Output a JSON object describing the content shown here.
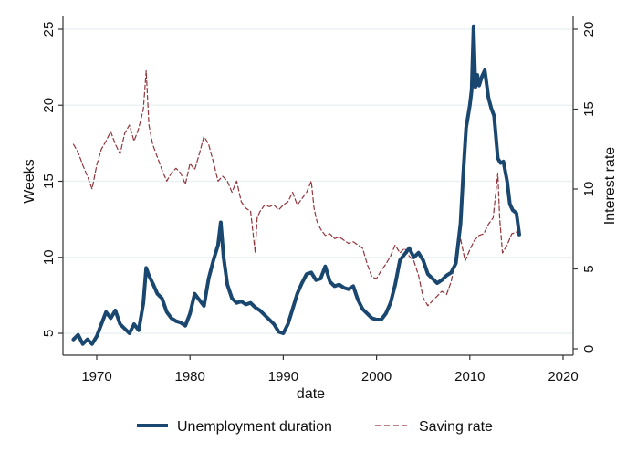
{
  "chart_data": {
    "type": "line",
    "title": "",
    "xlabel": "date",
    "ylabel": "Weeks",
    "y2label": "Interest rate",
    "xlim": [
      1967,
      2021
    ],
    "ylim": [
      3.5,
      26
    ],
    "y2lim": [
      -0.4,
      20.6
    ],
    "x_ticks": [
      1970,
      1980,
      1990,
      2000,
      2010,
      2020
    ],
    "y_ticks": [
      5,
      10,
      15,
      20,
      25
    ],
    "y2_ticks": [
      0,
      5,
      10,
      15,
      20
    ],
    "grid": true,
    "legend_position": "bottom",
    "colors": {
      "unemployment": "#1a476f",
      "saving": "#90353b",
      "grid": "#eaf2f3",
      "axis": "#333333"
    },
    "series": [
      {
        "name": "Unemployment duration",
        "axis": "left",
        "style": "solid",
        "x": [
          1967.5,
          1968.0,
          1968.5,
          1969.0,
          1969.5,
          1970.0,
          1970.5,
          1971.0,
          1971.5,
          1972.0,
          1972.5,
          1973.0,
          1973.5,
          1974.0,
          1974.5,
          1975.0,
          1975.3,
          1975.6,
          1976.0,
          1976.5,
          1977.0,
          1977.5,
          1978.0,
          1978.5,
          1979.0,
          1979.5,
          1980.0,
          1980.5,
          1981.0,
          1981.5,
          1982.0,
          1982.5,
          1983.0,
          1983.3,
          1983.6,
          1984.0,
          1984.5,
          1985.0,
          1985.5,
          1986.0,
          1986.5,
          1987.0,
          1987.5,
          1988.0,
          1988.5,
          1989.0,
          1989.5,
          1990.0,
          1990.5,
          1991.0,
          1991.5,
          1992.0,
          1992.5,
          1993.0,
          1993.5,
          1994.0,
          1994.5,
          1995.0,
          1995.5,
          1996.0,
          1996.5,
          1997.0,
          1997.5,
          1998.0,
          1998.5,
          1999.0,
          1999.5,
          2000.0,
          2000.5,
          2001.0,
          2001.5,
          2002.0,
          2002.5,
          2003.0,
          2003.5,
          2004.0,
          2004.5,
          2005.0,
          2005.5,
          2006.0,
          2006.5,
          2007.0,
          2007.5,
          2008.0,
          2008.5,
          2009.0,
          2009.3,
          2009.6,
          2010.0,
          2010.2,
          2010.4,
          2010.6,
          2010.8,
          2011.0,
          2011.3,
          2011.6,
          2012.0,
          2012.3,
          2012.6,
          2013.0,
          2013.3,
          2013.6,
          2014.0,
          2014.3,
          2014.6,
          2015.0,
          2015.3
        ],
        "values": [
          4.6,
          4.9,
          4.3,
          4.6,
          4.3,
          4.8,
          5.6,
          6.4,
          6.0,
          6.5,
          5.6,
          5.3,
          5.0,
          5.6,
          5.2,
          7.0,
          9.3,
          8.8,
          8.3,
          7.6,
          7.3,
          6.4,
          6.0,
          5.8,
          5.7,
          5.5,
          6.3,
          7.6,
          7.2,
          6.8,
          8.6,
          9.8,
          10.8,
          12.3,
          10.0,
          8.2,
          7.3,
          7.0,
          7.1,
          6.9,
          7.0,
          6.7,
          6.5,
          6.2,
          5.9,
          5.6,
          5.1,
          5.0,
          5.6,
          6.6,
          7.6,
          8.3,
          8.9,
          9.0,
          8.5,
          8.6,
          9.4,
          8.4,
          8.1,
          8.2,
          8.0,
          7.9,
          8.1,
          7.2,
          6.6,
          6.3,
          6.0,
          5.9,
          5.9,
          6.3,
          7.0,
          8.2,
          9.8,
          10.2,
          10.6,
          10.0,
          10.3,
          9.8,
          8.9,
          8.6,
          8.3,
          8.5,
          8.8,
          9.0,
          9.6,
          12.2,
          15.5,
          18.5,
          20.0,
          21.0,
          25.2,
          21.2,
          22.0,
          21.3,
          21.9,
          22.3,
          20.5,
          19.8,
          19.3,
          16.5,
          16.2,
          16.3,
          15.0,
          13.5,
          13.1,
          12.9,
          11.5
        ]
      },
      {
        "name": "Saving rate",
        "axis": "right",
        "style": "dashed",
        "x": [
          1967.5,
          1968.0,
          1968.5,
          1969.0,
          1969.5,
          1970.0,
          1970.5,
          1971.0,
          1971.5,
          1972.0,
          1972.5,
          1973.0,
          1973.5,
          1974.0,
          1974.5,
          1975.0,
          1975.3,
          1975.6,
          1976.0,
          1976.5,
          1977.0,
          1977.5,
          1978.0,
          1978.5,
          1979.0,
          1979.5,
          1980.0,
          1980.5,
          1981.0,
          1981.5,
          1982.0,
          1982.5,
          1983.0,
          1983.5,
          1984.0,
          1984.5,
          1985.0,
          1985.5,
          1986.0,
          1986.5,
          1987.0,
          1987.2,
          1987.5,
          1988.0,
          1988.5,
          1989.0,
          1989.5,
          1990.0,
          1990.5,
          1991.0,
          1991.5,
          1992.0,
          1992.5,
          1993.0,
          1993.3,
          1993.6,
          1994.0,
          1994.5,
          1995.0,
          1995.5,
          1996.0,
          1996.5,
          1997.0,
          1997.5,
          1998.0,
          1998.5,
          1999.0,
          1999.5,
          2000.0,
          2000.5,
          2001.0,
          2001.5,
          2002.0,
          2002.5,
          2003.0,
          2003.5,
          2004.0,
          2004.5,
          2005.0,
          2005.5,
          2006.0,
          2006.5,
          2007.0,
          2007.5,
          2008.0,
          2008.5,
          2009.0,
          2009.5,
          2010.0,
          2010.5,
          2011.0,
          2011.5,
          2012.0,
          2012.5,
          2013.0,
          2013.2,
          2013.5,
          2014.0,
          2014.5,
          2015.0,
          2015.3
        ],
        "values": [
          12.8,
          12.3,
          11.5,
          10.8,
          10.0,
          11.5,
          12.5,
          13.0,
          13.6,
          12.8,
          12.2,
          13.5,
          14.0,
          13.0,
          13.8,
          15.0,
          17.4,
          14.0,
          12.8,
          12.0,
          11.2,
          10.5,
          11.0,
          11.3,
          11.0,
          10.3,
          11.6,
          11.2,
          12.2,
          13.3,
          12.8,
          11.7,
          10.5,
          10.8,
          10.5,
          9.8,
          10.5,
          9.2,
          8.8,
          8.6,
          6.0,
          8.2,
          8.6,
          9.0,
          8.9,
          9.0,
          8.7,
          9.0,
          9.2,
          9.8,
          9.0,
          9.4,
          9.8,
          10.5,
          8.8,
          8.0,
          7.5,
          7.1,
          7.2,
          6.9,
          7.0,
          6.8,
          6.6,
          6.7,
          6.5,
          6.3,
          5.3,
          4.5,
          4.4,
          4.9,
          5.3,
          5.8,
          6.5,
          6.0,
          6.3,
          5.8,
          5.5,
          4.6,
          3.2,
          2.7,
          3.0,
          3.3,
          3.6,
          3.4,
          4.2,
          5.8,
          6.9,
          5.5,
          6.2,
          6.8,
          7.1,
          7.2,
          7.8,
          8.2,
          11.0,
          8.2,
          6.0,
          6.5,
          7.2,
          7.3,
          7.6
        ]
      }
    ]
  }
}
